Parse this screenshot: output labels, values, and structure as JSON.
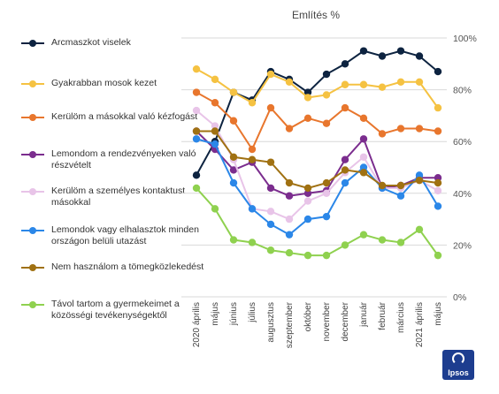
{
  "chart_data": {
    "type": "line",
    "title": "Említés %",
    "categories": [
      "2020 április",
      "május",
      "június",
      "július",
      "augusztus",
      "szeptember",
      "október",
      "november",
      "december",
      "január",
      "február",
      "március",
      "2021 április",
      "május"
    ],
    "ylim": [
      0,
      100
    ],
    "yticks": [
      "0%",
      "20%",
      "40%",
      "60%",
      "80%",
      "100%"
    ],
    "ytick_values": [
      0,
      20,
      40,
      60,
      80,
      100
    ],
    "grid": true,
    "legend_placement": "left",
    "series": [
      {
        "name": "Arcmaszkot viselek",
        "color": "#0d2340",
        "values": [
          47,
          60,
          79,
          76,
          87,
          84,
          79,
          86,
          90,
          95,
          93,
          95,
          93,
          87
        ]
      },
      {
        "name": "Gyakrabban mosok kezet",
        "color": "#f5c242",
        "values": [
          88,
          84,
          79,
          75,
          86,
          83,
          77,
          78,
          82,
          82,
          81,
          83,
          83,
          73
        ]
      },
      {
        "name": "Kerülöm a másokkal való kézfogást",
        "color": "#e8762d",
        "values": [
          79,
          75,
          68,
          57,
          73,
          65,
          69,
          67,
          73,
          69,
          63,
          65,
          65,
          64
        ]
      },
      {
        "name": "Lemondom a rendezvényeken való részvételt",
        "color": "#7b2d8e",
        "values": [
          64,
          57,
          49,
          52,
          42,
          39,
          40,
          41,
          53,
          61,
          42,
          43,
          46,
          46
        ]
      },
      {
        "name": "Kerülöm a személyes kontaktust másokkal",
        "color": "#e8c4e8",
        "values": [
          72,
          66,
          53,
          34,
          33,
          30,
          37,
          40,
          48,
          54,
          42,
          42,
          45,
          41
        ]
      },
      {
        "name": "Lemondok vagy elhalasztok minden országon belüli utazást",
        "color": "#2b87e8",
        "values": [
          61,
          59,
          44,
          34,
          28,
          24,
          30,
          31,
          44,
          50,
          42,
          39,
          47,
          35
        ]
      },
      {
        "name": "Nem használom a tömegközlekedést",
        "color": "#a07112",
        "values": [
          64,
          64,
          54,
          53,
          52,
          44,
          42,
          44,
          49,
          48,
          43,
          43,
          45,
          44
        ]
      },
      {
        "name": "Távol tartom a gyermekeimet a közösségi tevékenységektől",
        "color": "#8fd14f",
        "values": [
          42,
          34,
          22,
          21,
          18,
          17,
          16,
          16,
          20,
          24,
          22,
          21,
          26,
          16
        ]
      }
    ]
  },
  "legend": [
    {
      "label": "Arcmaszkot viselek",
      "color": "#0d2340"
    },
    {
      "label": "Gyakrabban mosok kezet",
      "color": "#f5c242"
    },
    {
      "label": "Kerülöm a másokkal való kézfogást",
      "color": "#e8762d"
    },
    {
      "label": "Lemondom a rendezvényeken való részvételt",
      "color": "#7b2d8e"
    },
    {
      "label": "Kerülöm a személyes kontaktust másokkal",
      "color": "#e8c4e8"
    },
    {
      "label": "Lemondok vagy elhalasztok minden országon belüli utazást",
      "color": "#2b87e8"
    },
    {
      "label": "Nem használom a tömegközlekedést",
      "color": "#a07112"
    },
    {
      "label": "Távol tartom a gyermekeimet a közösségi tevékenységektől",
      "color": "#8fd14f"
    }
  ],
  "logo": {
    "text": "Ipsos",
    "color": "#1d3d8f"
  }
}
